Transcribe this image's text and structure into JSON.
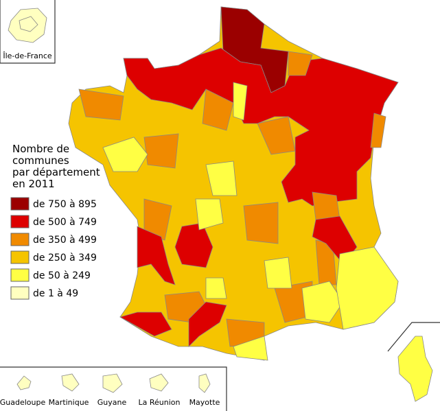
{
  "legend": {
    "title_lines": [
      "Nombre de",
      "communes",
      "par département",
      "en 2011"
    ],
    "items": [
      {
        "label": "de 750 à 895",
        "color": "#9b0000"
      },
      {
        "label": "de 500 à 749",
        "color": "#dd0000"
      },
      {
        "label": "de 350 à 499",
        "color": "#f08a00"
      },
      {
        "label": "de 250 à 349",
        "color": "#f5c400"
      },
      {
        "label": "de 50 à 249",
        "color": "#ffff44"
      },
      {
        "label": "de 1 à 49",
        "color": "#ffffc0"
      }
    ]
  },
  "insets": {
    "ile_de_france": "Île-de-France",
    "overseas": [
      "Guadeloupe",
      "Martinique",
      "Guyane",
      "La Réunion",
      "Mayotte"
    ]
  }
}
